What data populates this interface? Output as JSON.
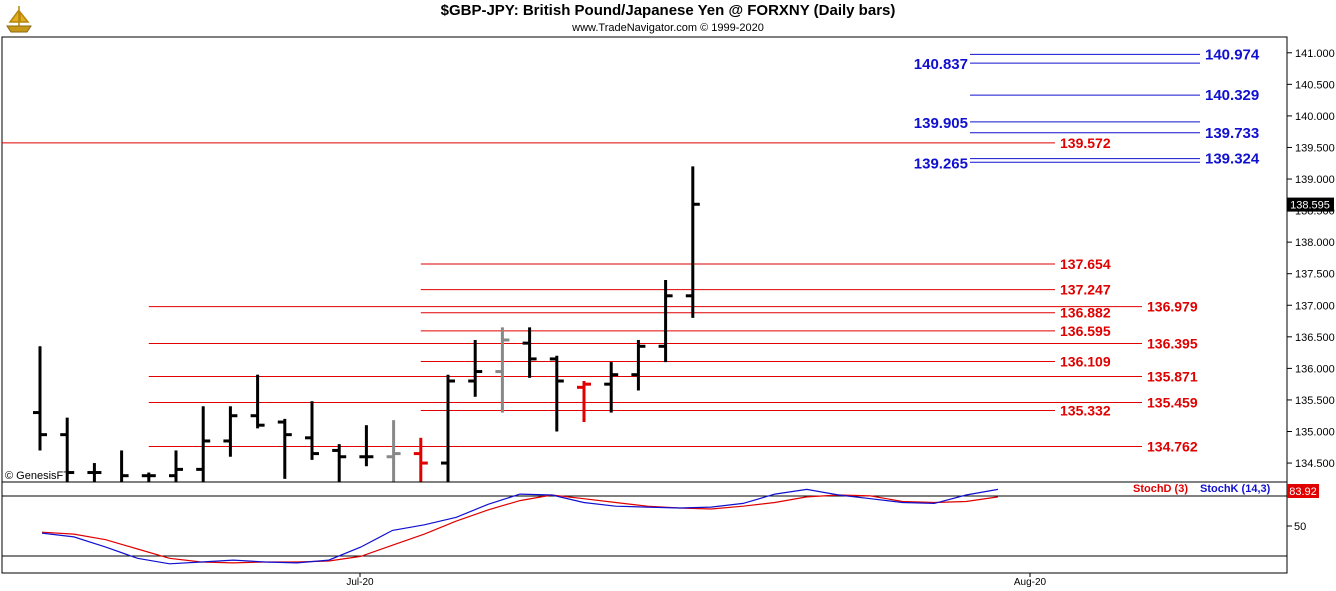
{
  "header": {
    "title": "$GBP-JPY:  British Pound/Japanese Yen @ FORXNY  (Daily bars)",
    "subtitle": "www.TradeNavigator.com © 1999-2020",
    "logo_icon": "trade-navigator-ship-logo"
  },
  "watermark": "© GenesisFT",
  "colors": {
    "bar": "#000000",
    "bar_gray": "#888888",
    "bar_red": "#e00000",
    "level_red": "#e00000",
    "level_blue": "#1010d0",
    "stoch_d": "#e00000",
    "stoch_k": "#1010d0",
    "last_price_bg": "#000000",
    "last_stoch_bg": "#e00000"
  },
  "chart_data": [
    {
      "type": "ohlc",
      "title": "$GBP-JPY:  British Pound/Japanese Yen @ FORXNY  (Daily bars)",
      "ylim": [
        134.2,
        141.25
      ],
      "y_ticks": [
        "134.500",
        "135.000",
        "135.500",
        "136.000",
        "136.500",
        "137.000",
        "137.500",
        "138.000",
        "138.500",
        "139.000",
        "139.500",
        "140.000",
        "140.500",
        "141.000"
      ],
      "x_ticks": [
        "Jul-20",
        "Aug-20"
      ],
      "last_price": "138.595",
      "bars": [
        {
          "o": 135.3,
          "h": 136.35,
          "l": 134.7,
          "c": 134.95,
          "color": "black"
        },
        {
          "o": 134.95,
          "h": 135.22,
          "l": 134.2,
          "c": 134.35,
          "color": "black"
        },
        {
          "o": 134.35,
          "h": 134.5,
          "l": 134.2,
          "c": 134.35,
          "color": "black"
        },
        {
          "o": 134.2,
          "h": 134.7,
          "l": 134.2,
          "c": 134.3,
          "color": "black"
        },
        {
          "o": 134.3,
          "h": 134.35,
          "l": 134.2,
          "c": 134.3,
          "color": "black"
        },
        {
          "o": 134.3,
          "h": 134.7,
          "l": 134.2,
          "c": 134.4,
          "color": "black"
        },
        {
          "o": 134.4,
          "h": 135.4,
          "l": 134.2,
          "c": 134.85,
          "color": "black"
        },
        {
          "o": 134.85,
          "h": 135.4,
          "l": 134.6,
          "c": 135.25,
          "color": "black"
        },
        {
          "o": 135.25,
          "h": 135.9,
          "l": 135.05,
          "c": 135.1,
          "color": "black"
        },
        {
          "o": 135.15,
          "h": 135.2,
          "l": 134.25,
          "c": 134.95,
          "color": "black"
        },
        {
          "o": 134.9,
          "h": 135.48,
          "l": 134.55,
          "c": 134.65,
          "color": "black"
        },
        {
          "o": 134.7,
          "h": 134.8,
          "l": 134.2,
          "c": 134.6,
          "color": "black"
        },
        {
          "o": 134.6,
          "h": 135.1,
          "l": 134.45,
          "c": 134.6,
          "color": "black"
        },
        {
          "o": 134.6,
          "h": 135.18,
          "l": 134.2,
          "c": 134.65,
          "color": "gray"
        },
        {
          "o": 134.65,
          "h": 134.9,
          "l": 134.2,
          "c": 134.5,
          "color": "red"
        },
        {
          "o": 134.5,
          "h": 135.9,
          "l": 134.2,
          "c": 135.8,
          "color": "black"
        },
        {
          "o": 135.8,
          "h": 136.45,
          "l": 135.55,
          "c": 135.95,
          "color": "black"
        },
        {
          "o": 135.95,
          "h": 136.65,
          "l": 135.3,
          "c": 136.45,
          "color": "gray"
        },
        {
          "o": 136.4,
          "h": 136.65,
          "l": 135.85,
          "c": 136.15,
          "color": "black"
        },
        {
          "o": 136.15,
          "h": 136.2,
          "l": 135.0,
          "c": 135.8,
          "color": "black"
        },
        {
          "o": 135.7,
          "h": 135.8,
          "l": 135.15,
          "c": 135.75,
          "color": "red"
        },
        {
          "o": 135.75,
          "h": 136.1,
          "l": 135.3,
          "c": 135.9,
          "color": "black"
        },
        {
          "o": 135.9,
          "h": 136.45,
          "l": 135.65,
          "c": 136.35,
          "color": "black"
        },
        {
          "o": 136.35,
          "h": 137.4,
          "l": 136.1,
          "c": 137.15,
          "color": "black"
        },
        {
          "o": 137.15,
          "h": 139.2,
          "l": 136.8,
          "c": 138.6,
          "color": "black"
        }
      ],
      "levels": [
        {
          "label": "134.762",
          "value": 134.762,
          "color": "red",
          "from_bar": 4,
          "label_side": "right"
        },
        {
          "label": "135.332",
          "value": 135.332,
          "color": "red",
          "from_bar": 14,
          "label_side": "mid"
        },
        {
          "label": "135.459",
          "value": 135.459,
          "color": "red",
          "from_bar": 4,
          "label_side": "right"
        },
        {
          "label": "135.871",
          "value": 135.871,
          "color": "red",
          "from_bar": 4,
          "label_side": "right"
        },
        {
          "label": "136.109",
          "value": 136.109,
          "color": "red",
          "from_bar": 14,
          "label_side": "mid"
        },
        {
          "label": "136.395",
          "value": 136.395,
          "color": "red",
          "from_bar": 4,
          "label_side": "right"
        },
        {
          "label": "136.595",
          "value": 136.595,
          "color": "red",
          "from_bar": 14,
          "label_side": "mid"
        },
        {
          "label": "136.882",
          "value": 136.882,
          "color": "red",
          "from_bar": 14,
          "label_side": "mid"
        },
        {
          "label": "136.979",
          "value": 136.979,
          "color": "red",
          "from_bar": 4,
          "label_side": "right"
        },
        {
          "label": "137.247",
          "value": 137.247,
          "color": "red",
          "from_bar": 14,
          "label_side": "mid"
        },
        {
          "label": "137.654",
          "value": 137.654,
          "color": "red",
          "from_bar": 14,
          "label_side": "mid"
        },
        {
          "label": "139.572",
          "value": 139.572,
          "color": "red",
          "from_bar": -1,
          "label_side": "mid"
        },
        {
          "label": "139.265",
          "value": 139.265,
          "color": "blue",
          "from_bar": 24,
          "label_side": "left"
        },
        {
          "label": "139.324",
          "value": 139.324,
          "color": "blue",
          "from_bar": 24,
          "label_side": "right"
        },
        {
          "label": "139.733",
          "value": 139.733,
          "color": "blue",
          "from_bar": 24,
          "label_side": "right"
        },
        {
          "label": "139.905",
          "value": 139.905,
          "color": "blue",
          "from_bar": 24,
          "label_side": "left"
        },
        {
          "label": "140.329",
          "value": 140.329,
          "color": "blue",
          "from_bar": 24,
          "label_side": "right"
        },
        {
          "label": "140.837",
          "value": 140.837,
          "color": "blue",
          "from_bar": 24,
          "label_side": "left"
        },
        {
          "label": "140.974",
          "value": 140.974,
          "color": "blue",
          "from_bar": 24,
          "label_side": "right"
        }
      ]
    },
    {
      "type": "line",
      "legend": [
        "StochD (3)",
        "StochK (14,3)"
      ],
      "ylim": [
        0,
        100
      ],
      "y_ticks": [
        "50"
      ],
      "last_value": "83.92",
      "series": [
        {
          "name": "StochD (3)",
          "color": "red",
          "values": [
            46,
            44,
            38,
            28,
            18,
            14,
            13,
            14,
            14,
            15,
            20,
            32,
            44,
            58,
            70,
            80,
            86,
            82,
            78,
            74,
            72,
            71,
            74,
            78,
            84,
            86,
            85,
            79,
            78,
            79,
            84
          ]
        },
        {
          "name": "StochK (14,3)",
          "color": "blue",
          "values": [
            45,
            41,
            30,
            18,
            12,
            14,
            16,
            14,
            13,
            16,
            30,
            48,
            54,
            62,
            76,
            87,
            86,
            78,
            74,
            73,
            72,
            73,
            77,
            87,
            92,
            86,
            82,
            78,
            77,
            86,
            92
          ]
        }
      ]
    }
  ]
}
